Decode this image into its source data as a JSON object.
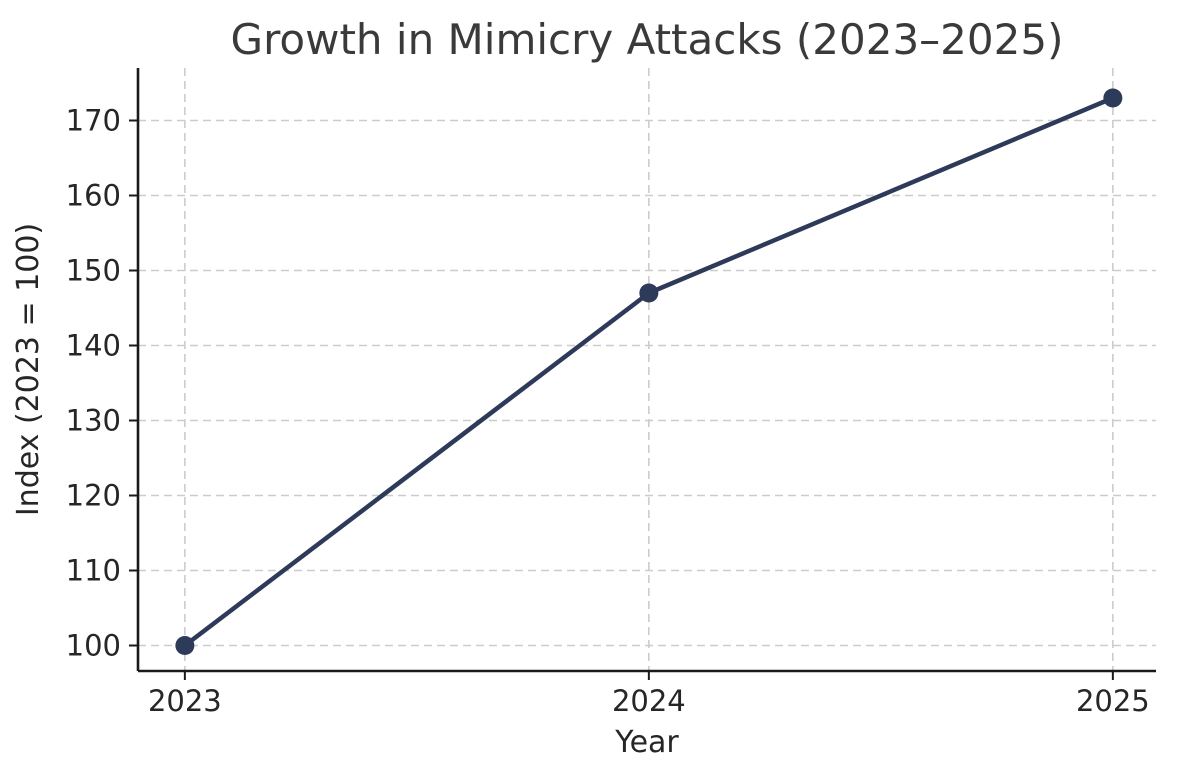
{
  "figure": {
    "background": "#ffffff"
  },
  "chart_data": {
    "type": "line",
    "title": "Growth in Mimicry Attacks (2023–2025)",
    "xlabel": "Year",
    "ylabel": "Index (2023 = 100)",
    "categories": [
      2023,
      2024,
      2025
    ],
    "values": [
      100,
      147,
      173
    ],
    "xticks": [
      "2023",
      "2024",
      "2025"
    ],
    "yticks": [
      100,
      110,
      120,
      130,
      140,
      150,
      160,
      170
    ],
    "xlim": [
      2022.899,
      2025.093
    ],
    "ylim": [
      96.6,
      177.0
    ],
    "grid": true,
    "grid_style": "dashed",
    "legend": "none",
    "marker": "circle",
    "colors": {
      "line": "#2e3a59",
      "marker": "#2e3a59",
      "grid": "#cccccc",
      "spine": "#1a1a1a",
      "tick_label": "#262626",
      "axis_label": "#262626",
      "title": "#3a3a3a",
      "background": "#ffffff"
    }
  }
}
